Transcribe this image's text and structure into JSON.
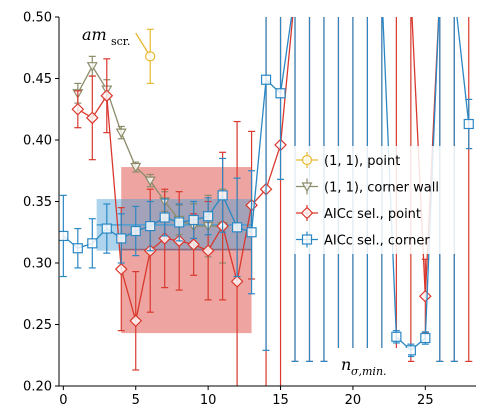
{
  "chart_data": {
    "type": "scatter",
    "annotation_top": {
      "main": "am",
      "sub": "scr."
    },
    "annotation_bottom": {
      "main": "n",
      "sub": "σ,min."
    },
    "xlim": [
      -0.3,
      28.5
    ],
    "ylim": [
      0.2,
      0.5
    ],
    "x_ticks": [
      0,
      5,
      10,
      15,
      20,
      25
    ],
    "x_tick_labels": [
      "0",
      "5",
      "10",
      "15",
      "20",
      "25"
    ],
    "y_ticks": [
      0.2,
      0.25,
      0.3,
      0.35,
      0.4,
      0.45,
      0.5
    ],
    "y_tick_labels": [
      "0.20",
      "0.25",
      "0.30",
      "0.35",
      "0.40",
      "0.45",
      "0.50"
    ],
    "grid": false,
    "legend_position": "center-right",
    "bands": [
      {
        "series": "AICc sel., point",
        "color": "#d9382e",
        "x": [
          4,
          13
        ],
        "y": 0.31,
        "yerr_low": 0.067,
        "yerr_high": 0.068,
        "line_y": 0.311
      },
      {
        "series": "AICc sel., corner",
        "color": "#4a9fd4",
        "x": [
          2.3,
          13
        ],
        "y": 0.331,
        "yerr_low": 0.021,
        "yerr_high": 0.021,
        "line_y": 0.331
      }
    ],
    "series": [
      {
        "name": "(1, 1), point",
        "color": "#e8b932",
        "marker": "circle",
        "points": [
          [
            6,
            0.468,
            0.022,
            0.022
          ]
        ],
        "trail": [
          [
            5,
            0.487
          ],
          [
            6,
            0.468
          ]
        ]
      },
      {
        "name": "(1, 1), corner wall",
        "color": "#8c8c6a",
        "marker": "triangle-down",
        "points": [
          [
            1,
            0.438,
            0.008,
            0.008
          ],
          [
            2,
            0.46,
            0.008,
            0.008
          ],
          [
            3,
            0.441,
            0.008,
            0.008
          ],
          [
            4,
            0.406,
            0.005,
            0.005
          ],
          [
            5,
            0.378,
            0.004,
            0.004
          ],
          [
            6,
            0.367,
            0.005,
            0.005
          ],
          [
            7,
            0.35,
            0.008,
            0.008
          ],
          [
            8,
            0.335,
            0.012,
            0.012
          ],
          [
            9,
            0.33,
            0.018,
            0.018
          ],
          [
            10,
            0.33,
            0.025,
            0.025
          ],
          [
            11,
            0.33,
            0.03,
            0.03
          ]
        ]
      },
      {
        "name": "AICc sel., point",
        "color": "#d9382e",
        "marker": "diamond",
        "points": [
          [
            1,
            0.425,
            0.015,
            0.015
          ],
          [
            2,
            0.418,
            0.034,
            0.034
          ],
          [
            3,
            0.436,
            0.03,
            0.03
          ],
          [
            4,
            0.295,
            0.05,
            0.05
          ],
          [
            5,
            0.253,
            0.04,
            0.04
          ],
          [
            6,
            0.31,
            0.05,
            0.05
          ],
          [
            7,
            0.32,
            0.04,
            0.04
          ],
          [
            8,
            0.318,
            0.04,
            0.04
          ],
          [
            9,
            0.315,
            0.025,
            0.025
          ],
          [
            10,
            0.31,
            0.04,
            0.04
          ],
          [
            11,
            0.33,
            0.06,
            0.06
          ],
          [
            12,
            0.285,
            0.13,
            0.13
          ],
          [
            13,
            0.347,
            0.06,
            0.06
          ],
          [
            14,
            0.36,
            0.2,
            0.2
          ],
          [
            15,
            0.396,
            0.2,
            0.2
          ],
          [
            16,
            0.52,
            0.3,
            0.3
          ],
          [
            17,
            0.52,
            0.3,
            0.3
          ],
          [
            18,
            0.52,
            0.3,
            0.3
          ],
          [
            19,
            0.52,
            0.3,
            0.3
          ],
          [
            20,
            0.52,
            0.3,
            0.3
          ],
          [
            21,
            0.52,
            0.3,
            0.3
          ],
          [
            22,
            0.52,
            0.3,
            0.3
          ],
          [
            23,
            0.52,
            0.3,
            0.3
          ],
          [
            24,
            0.52,
            0.3,
            0.3
          ],
          [
            25,
            0.273,
            0.03,
            0.03
          ],
          [
            26,
            0.52,
            0.3,
            0.3
          ],
          [
            27,
            0.52,
            0.3,
            0.3
          ],
          [
            28,
            0.52,
            0.3,
            0.3
          ]
        ]
      },
      {
        "name": "AICc sel., corner",
        "color": "#2b88c4",
        "marker": "square",
        "points": [
          [
            0,
            0.322,
            0.033,
            0.033
          ],
          [
            1,
            0.312,
            0.016,
            0.016
          ],
          [
            2,
            0.316,
            0.02,
            0.02
          ],
          [
            3,
            0.328,
            0.02,
            0.02
          ],
          [
            4,
            0.32,
            0.02,
            0.02
          ],
          [
            5,
            0.326,
            0.02,
            0.02
          ],
          [
            6,
            0.33,
            0.02,
            0.02
          ],
          [
            7,
            0.337,
            0.015,
            0.015
          ],
          [
            8,
            0.333,
            0.015,
            0.015
          ],
          [
            9,
            0.335,
            0.015,
            0.015
          ],
          [
            10,
            0.338,
            0.015,
            0.015
          ],
          [
            11,
            0.355,
            0.03,
            0.03
          ],
          [
            12,
            0.329,
            0.04,
            0.04
          ],
          [
            13,
            0.325,
            0.05,
            0.05
          ],
          [
            14,
            0.449,
            0.22,
            0.22
          ],
          [
            15,
            0.438,
            0.07,
            0.07
          ],
          [
            16,
            0.52,
            0.3,
            0.3
          ],
          [
            17,
            0.52,
            0.3,
            0.3
          ],
          [
            18,
            0.52,
            0.3,
            0.3
          ],
          [
            19,
            0.52,
            0.3,
            0.3
          ],
          [
            20,
            0.52,
            0.3,
            0.3
          ],
          [
            21,
            0.52,
            0.3,
            0.3
          ],
          [
            22,
            0.52,
            0.3,
            0.3
          ],
          [
            23,
            0.24,
            0.005,
            0.005
          ],
          [
            24,
            0.229,
            0.005,
            0.005
          ],
          [
            25,
            0.239,
            0.005,
            0.005
          ],
          [
            26,
            0.52,
            0.3,
            0.3
          ],
          [
            27,
            0.52,
            0.3,
            0.3
          ],
          [
            28,
            0.413,
            0.02,
            0.02
          ]
        ]
      }
    ]
  }
}
